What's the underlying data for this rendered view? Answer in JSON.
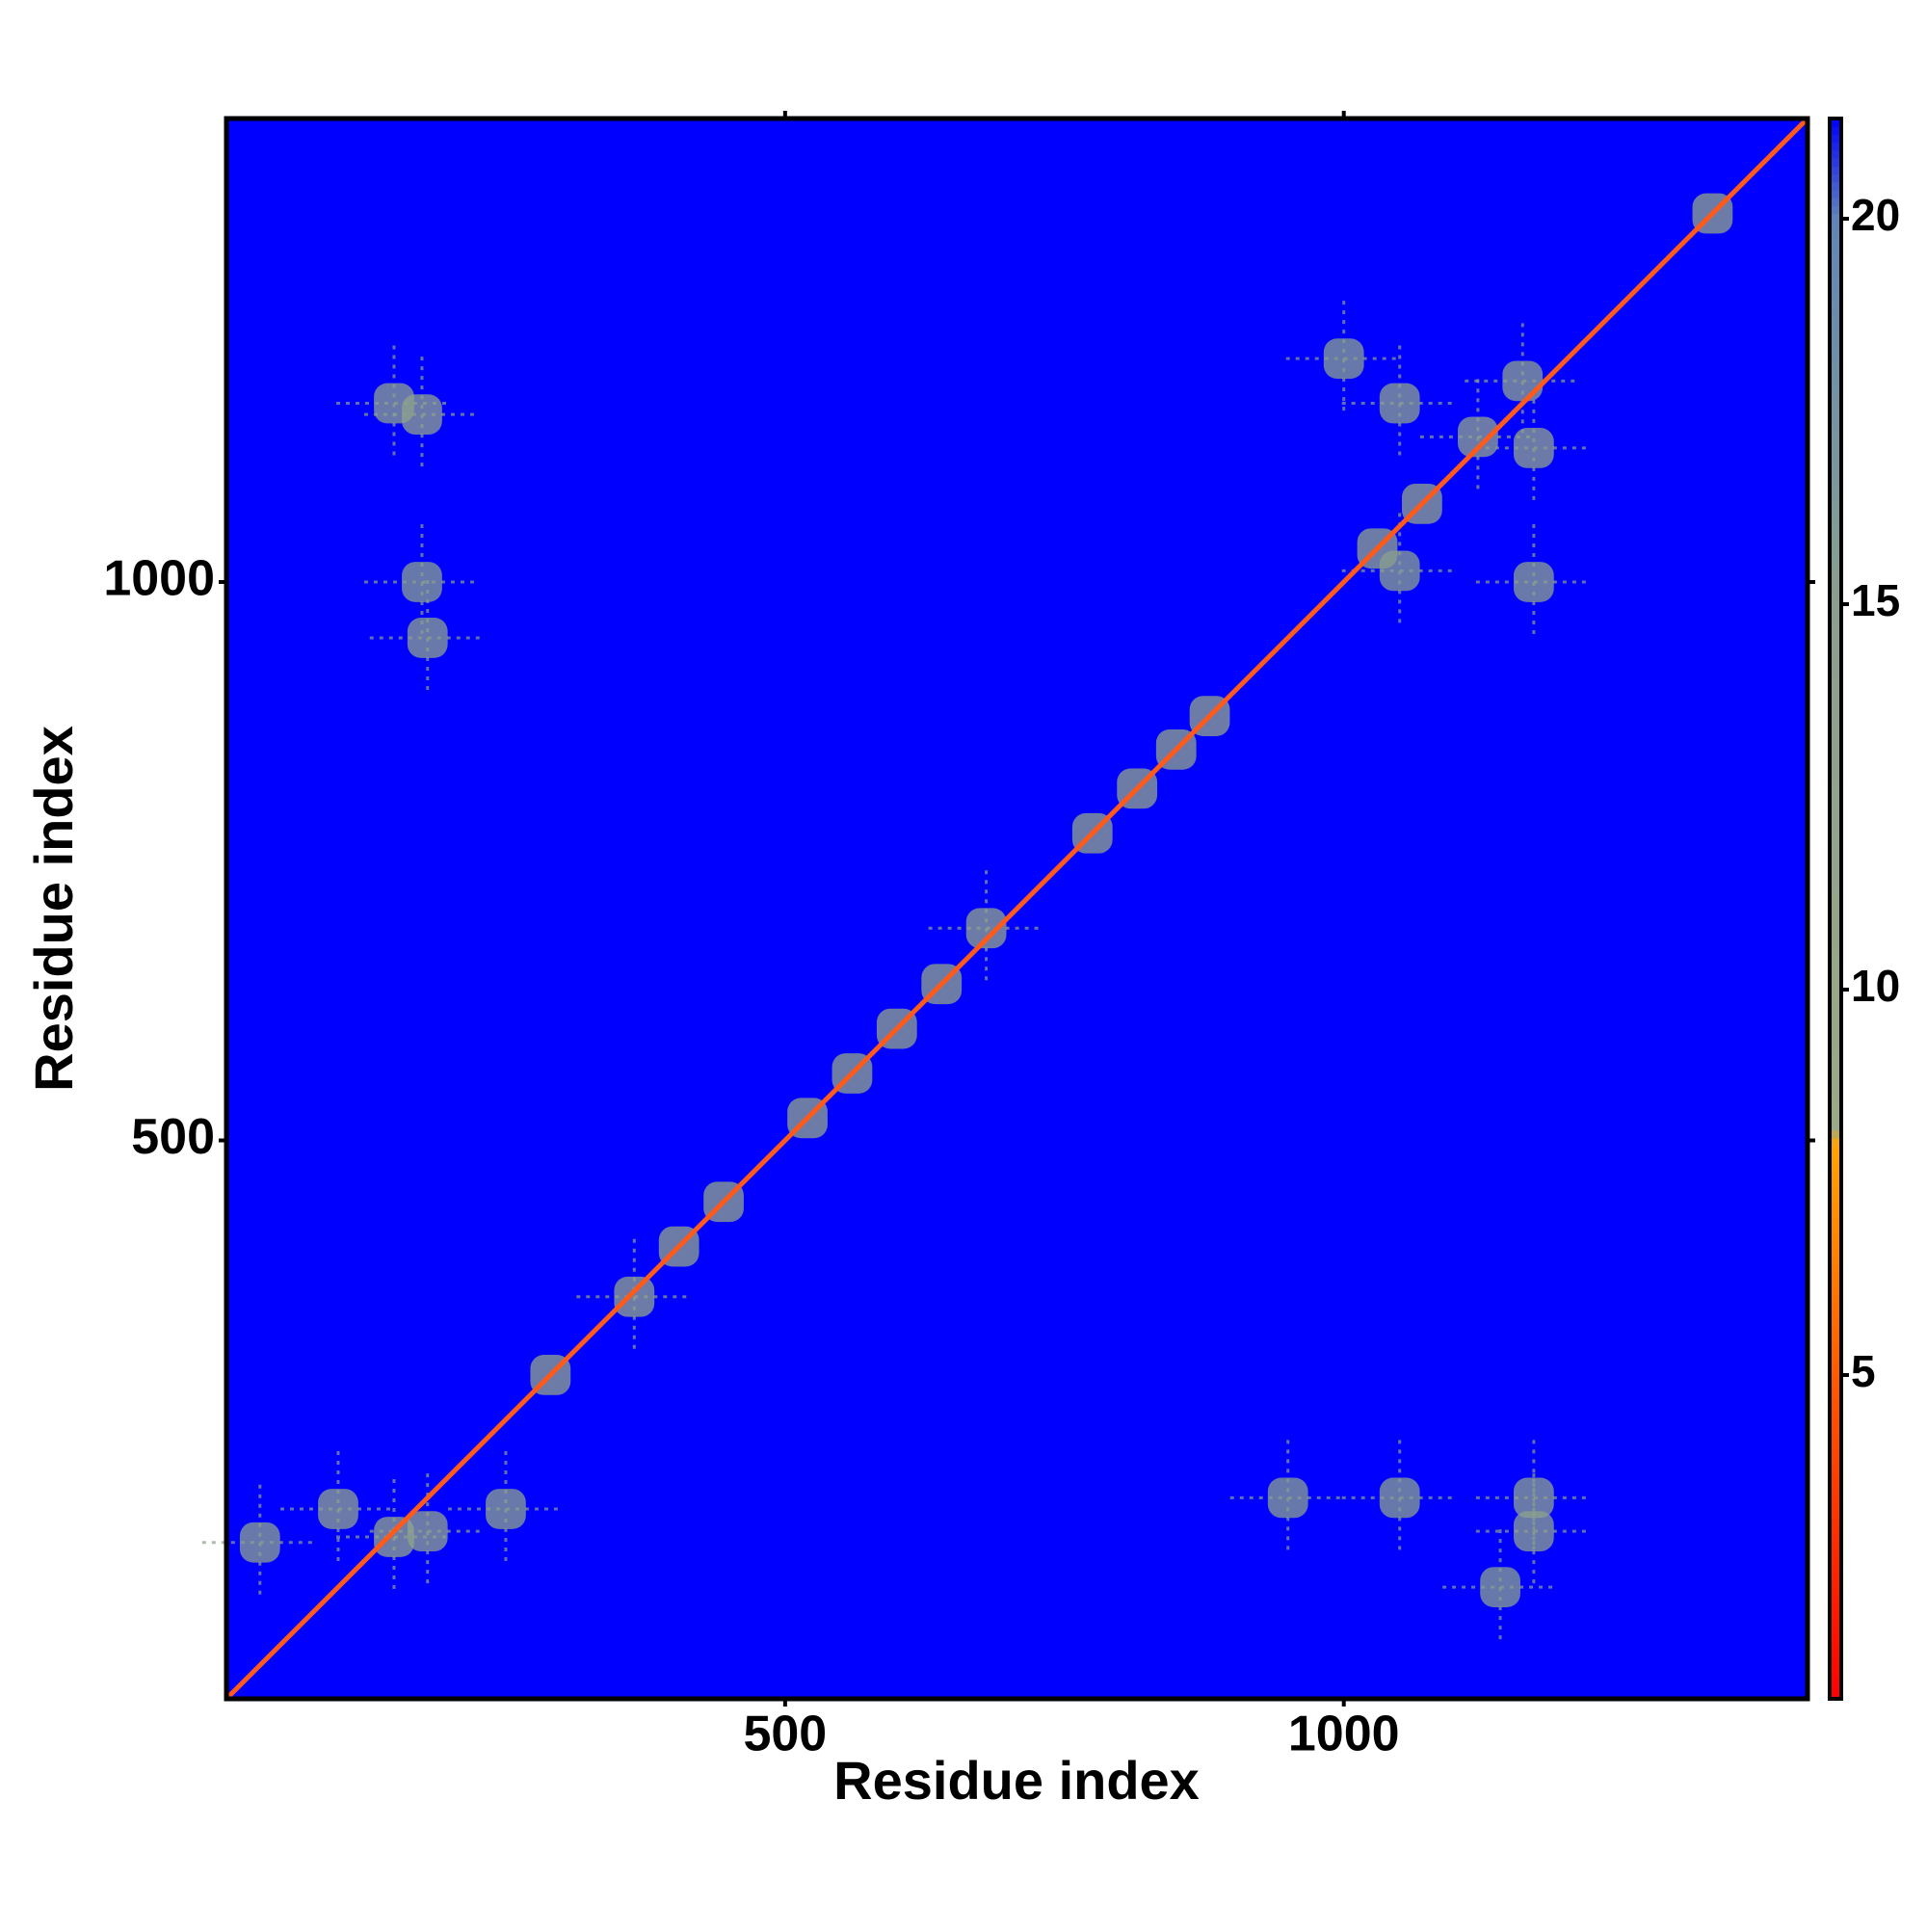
{
  "chart_data": {
    "type": "heatmap",
    "xlabel": "Residue index",
    "ylabel": "Residue index",
    "xlim": [
      0,
      1415
    ],
    "ylim": [
      0,
      1415
    ],
    "xticks": [
      500,
      1000
    ],
    "yticks": [
      500,
      1000
    ],
    "background_color": "#0000ff",
    "diagonal_color": "#ff5a1a",
    "colorbar": {
      "lim": [
        0.8,
        21.3
      ],
      "ticks": [
        5,
        10,
        15,
        20
      ],
      "stops": [
        {
          "value": 0.8,
          "color": "#ff0000"
        },
        {
          "value": 5,
          "color": "#ff5a00"
        },
        {
          "value": 8,
          "color": "#ffa500"
        },
        {
          "value": 8.2,
          "color": "#9aaa86"
        },
        {
          "value": 15,
          "color": "#8aa08e"
        },
        {
          "value": 20,
          "color": "#5f86b8"
        },
        {
          "value": 21.3,
          "color": "#0000ff"
        }
      ]
    },
    "x": [
      150,
      290,
      365,
      405,
      445,
      520,
      560,
      600,
      640,
      680,
      775,
      815,
      850,
      880,
      1030,
      1070,
      1330,
      150,
      175,
      180,
      175,
      1050,
      1120,
      1170,
      1170,
      1050,
      1000,
      1160,
      30,
      100,
      180,
      250,
      1170,
      1170,
      950,
      1050,
      1140
    ],
    "y": [
      145,
      290,
      360,
      405,
      445,
      520,
      560,
      600,
      640,
      690,
      775,
      815,
      850,
      880,
      1030,
      1070,
      1330,
      1160,
      1150,
      950,
      1000,
      1160,
      1130,
      1120,
      1000,
      1010,
      1200,
      1180,
      140,
      170,
      150,
      170,
      150,
      180,
      180,
      180,
      100
    ],
    "values": [
      12,
      12,
      12,
      12,
      12,
      12,
      12,
      12,
      12,
      12,
      12,
      12,
      12,
      12,
      12,
      12,
      12,
      14,
      13,
      14,
      15,
      14,
      13,
      13,
      14,
      15,
      15,
      14,
      14,
      13,
      13,
      14,
      14,
      14,
      15,
      15,
      15
    ]
  }
}
